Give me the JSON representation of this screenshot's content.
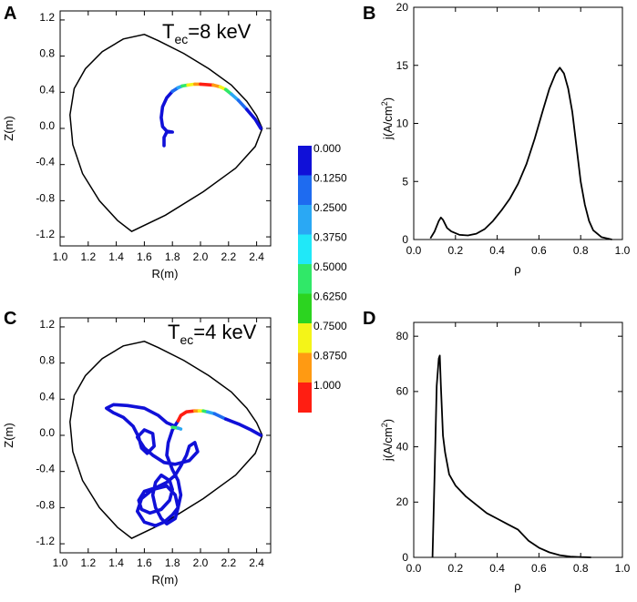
{
  "colors": {
    "boundary": "#000000",
    "ray": "#1a28e0",
    "curve": "#000000",
    "colormap": [
      "#1010d8",
      "#1e6bf0",
      "#2aa8f4",
      "#20e8f8",
      "#30e868",
      "#2cd420",
      "#f4f418",
      "#ff9a12",
      "#ff1e12"
    ]
  },
  "chart_data": [
    {
      "id": "A",
      "panel_label": "A",
      "type": "line",
      "title_main": "T",
      "title_sub": "ec",
      "title_rest": "=8 keV",
      "xlabel": "R(m)",
      "ylabel": "Z(m)",
      "xlim": [
        1.0,
        2.5
      ],
      "ylim": [
        -1.3,
        1.3
      ],
      "xticks": [
        "1.0",
        "1.2",
        "1.4",
        "1.6",
        "1.8",
        "2.0",
        "2.2",
        "2.4"
      ],
      "yticks": [
        "-1.2",
        "-0.8",
        "-0.4",
        "0.0",
        "0.4",
        "0.8",
        "1.2"
      ],
      "boundary": [
        [
          2.44,
          0.0
        ],
        [
          2.4,
          0.14
        ],
        [
          2.33,
          0.3
        ],
        [
          2.22,
          0.48
        ],
        [
          2.06,
          0.66
        ],
        [
          1.88,
          0.83
        ],
        [
          1.7,
          0.97
        ],
        [
          1.6,
          1.04
        ],
        [
          1.45,
          0.99
        ],
        [
          1.3,
          0.85
        ],
        [
          1.18,
          0.66
        ],
        [
          1.1,
          0.44
        ],
        [
          1.07,
          0.15
        ],
        [
          1.09,
          -0.18
        ],
        [
          1.16,
          -0.5
        ],
        [
          1.28,
          -0.8
        ],
        [
          1.41,
          -1.02
        ],
        [
          1.51,
          -1.14
        ],
        [
          1.75,
          -0.96
        ],
        [
          2.02,
          -0.7
        ],
        [
          2.25,
          -0.44
        ],
        [
          2.39,
          -0.2
        ],
        [
          2.44,
          0.0
        ]
      ],
      "ray_segments": [
        {
          "c": 0,
          "pts": [
            [
              1.74,
              -0.19
            ],
            [
              1.74,
              -0.1
            ],
            [
              1.76,
              -0.04
            ],
            [
              1.8,
              -0.04
            ],
            [
              1.76,
              -0.03
            ],
            [
              1.73,
              0.02
            ],
            [
              1.72,
              0.12
            ],
            [
              1.73,
              0.24
            ],
            [
              1.76,
              0.34
            ],
            [
              1.8,
              0.41
            ]
          ]
        },
        {
          "c": 1,
          "pts": [
            [
              1.8,
              0.41
            ],
            [
              1.84,
              0.45
            ]
          ]
        },
        {
          "c": 2,
          "pts": [
            [
              1.84,
              0.45
            ],
            [
              1.87,
              0.47
            ]
          ]
        },
        {
          "c": 4,
          "pts": [
            [
              1.87,
              0.47
            ],
            [
              1.91,
              0.48
            ]
          ]
        },
        {
          "c": 6,
          "pts": [
            [
              1.91,
              0.48
            ],
            [
              1.96,
              0.49
            ]
          ]
        },
        {
          "c": 7,
          "pts": [
            [
              1.96,
              0.49
            ],
            [
              2.0,
              0.49
            ]
          ]
        },
        {
          "c": 8,
          "pts": [
            [
              2.0,
              0.49
            ],
            [
              2.09,
              0.48
            ]
          ]
        },
        {
          "c": 7,
          "pts": [
            [
              2.09,
              0.48
            ],
            [
              2.14,
              0.46
            ]
          ]
        },
        {
          "c": 6,
          "pts": [
            [
              2.14,
              0.46
            ],
            [
              2.18,
              0.43
            ]
          ]
        },
        {
          "c": 4,
          "pts": [
            [
              2.18,
              0.43
            ],
            [
              2.22,
              0.38
            ]
          ]
        },
        {
          "c": 2,
          "pts": [
            [
              2.22,
              0.38
            ],
            [
              2.27,
              0.31
            ]
          ]
        },
        {
          "c": 1,
          "pts": [
            [
              2.27,
              0.31
            ],
            [
              2.33,
              0.21
            ]
          ]
        },
        {
          "c": 0,
          "pts": [
            [
              2.33,
              0.21
            ],
            [
              2.39,
              0.1
            ],
            [
              2.43,
              0.0
            ]
          ]
        }
      ]
    },
    {
      "id": "B",
      "panel_label": "B",
      "type": "line",
      "xlabel": "ρ",
      "ylabel_main": "j(A/cm",
      "ylabel_sup": "2",
      "ylabel_end": ")",
      "xlim": [
        0.0,
        1.0
      ],
      "ylim": [
        0,
        20
      ],
      "xticks": [
        "0.0",
        "0.2",
        "0.4",
        "0.6",
        "0.8",
        "1.0"
      ],
      "yticks": [
        "0",
        "5",
        "10",
        "15",
        "20"
      ],
      "x": [
        0.08,
        0.1,
        0.12,
        0.13,
        0.14,
        0.16,
        0.18,
        0.22,
        0.26,
        0.3,
        0.34,
        0.38,
        0.42,
        0.46,
        0.5,
        0.54,
        0.58,
        0.62,
        0.65,
        0.68,
        0.7,
        0.72,
        0.74,
        0.76,
        0.78,
        0.8,
        0.82,
        0.84,
        0.86,
        0.9,
        0.95
      ],
      "y": [
        0.1,
        0.7,
        1.6,
        1.9,
        1.7,
        1.0,
        0.7,
        0.4,
        0.35,
        0.5,
        0.9,
        1.6,
        2.5,
        3.5,
        4.8,
        6.5,
        8.7,
        11.2,
        13.0,
        14.3,
        14.8,
        14.3,
        13.0,
        11.0,
        8.0,
        5.0,
        3.0,
        1.6,
        0.8,
        0.2,
        0.0
      ]
    },
    {
      "id": "C",
      "panel_label": "C",
      "type": "line",
      "title_main": "T",
      "title_sub": "ec",
      "title_rest": "=4 keV",
      "xlabel": "R(m)",
      "ylabel": "Z(m)",
      "xlim": [
        1.0,
        2.5
      ],
      "ylim": [
        -1.3,
        1.3
      ],
      "xticks": [
        "1.0",
        "1.2",
        "1.4",
        "1.6",
        "1.8",
        "2.0",
        "2.2",
        "2.4"
      ],
      "yticks": [
        "-1.2",
        "-0.8",
        "-0.4",
        "0.0",
        "0.4",
        "0.8",
        "1.2"
      ],
      "boundary": [
        [
          2.44,
          0.0
        ],
        [
          2.4,
          0.14
        ],
        [
          2.33,
          0.3
        ],
        [
          2.22,
          0.48
        ],
        [
          2.06,
          0.66
        ],
        [
          1.88,
          0.83
        ],
        [
          1.7,
          0.97
        ],
        [
          1.6,
          1.04
        ],
        [
          1.45,
          0.99
        ],
        [
          1.3,
          0.85
        ],
        [
          1.18,
          0.66
        ],
        [
          1.1,
          0.44
        ],
        [
          1.07,
          0.15
        ],
        [
          1.09,
          -0.18
        ],
        [
          1.16,
          -0.5
        ],
        [
          1.28,
          -0.8
        ],
        [
          1.41,
          -1.02
        ],
        [
          1.51,
          -1.14
        ],
        [
          1.75,
          -0.96
        ],
        [
          2.02,
          -0.7
        ],
        [
          2.25,
          -0.44
        ],
        [
          2.39,
          -0.2
        ],
        [
          2.44,
          0.0
        ]
      ],
      "ray_segments": [
        {
          "c": 0,
          "pts": [
            [
              1.82,
              0.1
            ],
            [
              1.76,
              0.14
            ],
            [
              1.7,
              0.22
            ],
            [
              1.6,
              0.3
            ],
            [
              1.48,
              0.33
            ],
            [
              1.38,
              0.34
            ],
            [
              1.33,
              0.3
            ],
            [
              1.38,
              0.25
            ],
            [
              1.45,
              0.2
            ],
            [
              1.52,
              0.1
            ],
            [
              1.56,
              -0.02
            ],
            [
              1.58,
              -0.14
            ],
            [
              1.62,
              -0.2
            ],
            [
              1.67,
              -0.12
            ],
            [
              1.66,
              0.02
            ],
            [
              1.6,
              0.06
            ],
            [
              1.55,
              -0.02
            ],
            [
              1.6,
              -0.14
            ],
            [
              1.66,
              -0.22
            ],
            [
              1.74,
              -0.3
            ],
            [
              1.82,
              -0.32
            ],
            [
              1.92,
              -0.28
            ],
            [
              1.98,
              -0.18
            ],
            [
              1.96,
              -0.08
            ],
            [
              1.92,
              -0.12
            ],
            [
              1.9,
              -0.22
            ],
            [
              1.86,
              -0.34
            ],
            [
              1.82,
              -0.44
            ],
            [
              1.76,
              -0.52
            ],
            [
              1.68,
              -0.58
            ],
            [
              1.6,
              -0.62
            ],
            [
              1.56,
              -0.72
            ],
            [
              1.58,
              -0.82
            ],
            [
              1.64,
              -0.86
            ],
            [
              1.72,
              -0.82
            ],
            [
              1.78,
              -0.72
            ],
            [
              1.8,
              -0.6
            ],
            [
              1.78,
              -0.5
            ],
            [
              1.72,
              -0.44
            ],
            [
              1.68,
              -0.52
            ],
            [
              1.66,
              -0.66
            ],
            [
              1.68,
              -0.8
            ],
            [
              1.72,
              -0.92
            ],
            [
              1.76,
              -0.98
            ],
            [
              1.82,
              -0.92
            ],
            [
              1.84,
              -0.8
            ],
            [
              1.82,
              -0.66
            ],
            [
              1.76,
              -0.56
            ],
            [
              1.66,
              -0.6
            ],
            [
              1.58,
              -0.7
            ],
            [
              1.55,
              -0.84
            ],
            [
              1.6,
              -0.96
            ],
            [
              1.68,
              -1.0
            ],
            [
              1.74,
              -0.96
            ],
            [
              1.8,
              -0.88
            ],
            [
              1.84,
              -0.8
            ],
            [
              1.86,
              -0.66
            ],
            [
              1.84,
              -0.5
            ],
            [
              1.8,
              -0.38
            ],
            [
              1.76,
              -0.22
            ],
            [
              1.77,
              -0.08
            ],
            [
              1.8,
              0.06
            ],
            [
              1.84,
              0.16
            ]
          ]
        },
        {
          "c": 8,
          "pts": [
            [
              1.84,
              0.16
            ],
            [
              1.86,
              0.22
            ],
            [
              1.9,
              0.26
            ],
            [
              1.96,
              0.27
            ]
          ]
        },
        {
          "c": 7,
          "pts": [
            [
              1.96,
              0.27
            ],
            [
              1.99,
              0.27
            ]
          ]
        },
        {
          "c": 6,
          "pts": [
            [
              1.99,
              0.27
            ],
            [
              2.02,
              0.27
            ]
          ]
        },
        {
          "c": 4,
          "pts": [
            [
              2.02,
              0.27
            ],
            [
              2.05,
              0.26
            ]
          ]
        },
        {
          "c": 2,
          "pts": [
            [
              2.05,
              0.26
            ],
            [
              2.1,
              0.24
            ]
          ]
        },
        {
          "c": 1,
          "pts": [
            [
              2.1,
              0.24
            ],
            [
              2.18,
              0.18
            ]
          ]
        },
        {
          "c": 0,
          "pts": [
            [
              2.18,
              0.18
            ],
            [
              2.28,
              0.12
            ],
            [
              2.36,
              0.06
            ],
            [
              2.43,
              0.0
            ]
          ]
        },
        {
          "c": 4,
          "pts": [
            [
              1.8,
              0.09
            ],
            [
              1.84,
              0.08
            ]
          ]
        },
        {
          "c": 2,
          "pts": [
            [
              1.84,
              0.08
            ],
            [
              1.86,
              0.07
            ]
          ]
        }
      ]
    },
    {
      "id": "D",
      "panel_label": "D",
      "type": "line",
      "xlabel": "ρ",
      "ylabel_main": "j(A/cm",
      "ylabel_sup": "2",
      "ylabel_end": ")",
      "xlim": [
        0.0,
        1.0
      ],
      "ylim": [
        0,
        85
      ],
      "xticks": [
        "0.0",
        "0.2",
        "0.4",
        "0.6",
        "0.8",
        "1.0"
      ],
      "yticks": [
        "0",
        "20",
        "40",
        "60",
        "80"
      ],
      "x": [
        0.09,
        0.1,
        0.11,
        0.12,
        0.125,
        0.13,
        0.14,
        0.15,
        0.17,
        0.2,
        0.25,
        0.3,
        0.35,
        0.4,
        0.45,
        0.5,
        0.55,
        0.6,
        0.65,
        0.7,
        0.75,
        0.8,
        0.85
      ],
      "y": [
        0,
        30,
        62,
        72,
        73,
        62,
        44,
        38,
        30,
        26,
        22,
        19,
        16,
        14,
        12,
        10,
        6,
        3.5,
        1.8,
        0.8,
        0.3,
        0.1,
        0
      ]
    }
  ],
  "colorbar": {
    "labels": [
      "0.000",
      "0.1250",
      "0.2500",
      "0.3750",
      "0.5000",
      "0.6250",
      "0.7500",
      "0.8750",
      "1.000"
    ]
  }
}
